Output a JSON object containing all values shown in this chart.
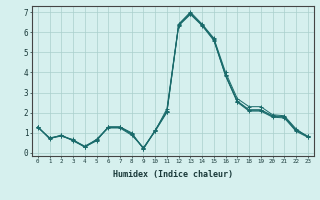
{
  "xlabel": "Humidex (Indice chaleur)",
  "background_color": "#d6f0ee",
  "grid_color": "#aacfcc",
  "line_color": "#1a6b6b",
  "xlim": [
    -0.5,
    23.5
  ],
  "ylim": [
    -0.15,
    7.3
  ],
  "xticks": [
    0,
    1,
    2,
    3,
    4,
    5,
    6,
    7,
    8,
    9,
    10,
    11,
    12,
    13,
    14,
    15,
    16,
    17,
    18,
    19,
    20,
    21,
    22,
    23
  ],
  "yticks": [
    0,
    1,
    2,
    3,
    4,
    5,
    6,
    7
  ],
  "series": [
    [
      1.3,
      0.7,
      0.9,
      0.6,
      0.3,
      0.6,
      1.3,
      1.3,
      1.0,
      0.2,
      1.1,
      2.2,
      6.4,
      7.0,
      6.4,
      5.7,
      4.0,
      2.7,
      2.3,
      2.3,
      1.9,
      1.85,
      1.2,
      0.8
    ],
    [
      1.3,
      0.72,
      0.85,
      0.62,
      0.32,
      0.63,
      1.27,
      1.27,
      0.93,
      0.22,
      1.12,
      2.05,
      6.35,
      6.92,
      6.35,
      5.62,
      3.85,
      2.55,
      2.12,
      2.12,
      1.82,
      1.78,
      1.12,
      0.82
    ],
    [
      1.28,
      0.74,
      0.87,
      0.64,
      0.34,
      0.66,
      1.29,
      1.29,
      0.96,
      0.24,
      1.14,
      2.08,
      6.38,
      6.95,
      6.38,
      5.65,
      3.88,
      2.58,
      2.15,
      2.15,
      1.85,
      1.8,
      1.15,
      0.84
    ],
    [
      1.26,
      0.76,
      0.83,
      0.67,
      0.28,
      0.68,
      1.24,
      1.24,
      0.88,
      0.27,
      1.08,
      2.02,
      6.32,
      6.88,
      6.32,
      5.58,
      3.82,
      2.52,
      2.08,
      2.08,
      1.78,
      1.74,
      1.08,
      0.78
    ]
  ]
}
